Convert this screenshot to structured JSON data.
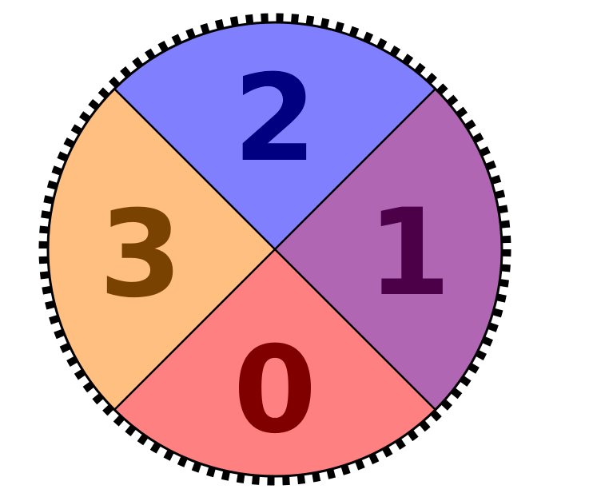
{
  "spinner": {
    "sectors": [
      {
        "label": "2",
        "fill": "#8080ff",
        "text_color": "#000080"
      },
      {
        "label": "1",
        "fill": "#b066b3",
        "text_color": "#4b0048"
      },
      {
        "label": "0",
        "fill": "#ff8080",
        "text_color": "#800000"
      },
      {
        "label": "3",
        "fill": "#ffbf80",
        "text_color": "#7a4200"
      }
    ],
    "outline_color": "#000000",
    "tick_style": "dashed ring"
  }
}
